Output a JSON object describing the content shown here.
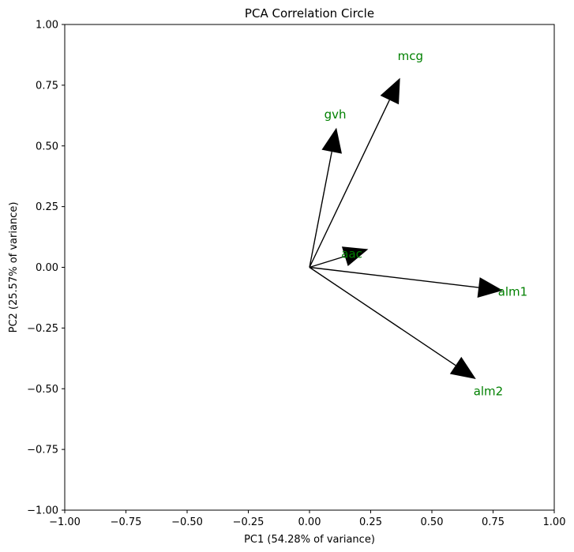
{
  "chart_data": {
    "type": "scatter",
    "title": "PCA Correlation Circle",
    "xlabel": "PC1 (54.28% of variance)",
    "ylabel": "PC2 (25.57% of variance)",
    "xlim": [
      -1.0,
      1.0
    ],
    "ylim": [
      -1.0,
      1.0
    ],
    "xticks": [
      "−1.00",
      "−0.75",
      "−0.50",
      "−0.25",
      "0.00",
      "0.25",
      "0.50",
      "0.75",
      "1.00"
    ],
    "yticks": [
      "1.00",
      "0.75",
      "0.50",
      "0.25",
      "0.00",
      "−0.25",
      "−0.50",
      "−0.75",
      "−1.00"
    ],
    "grid": false,
    "arrow_color": "#000000",
    "label_color": "#008000",
    "vectors": [
      {
        "label": "mcg",
        "x": 0.37,
        "y": 0.78,
        "label_x": 0.36,
        "label_y": 0.87
      },
      {
        "label": "gvh",
        "x": 0.11,
        "y": 0.575,
        "label_x": 0.06,
        "label_y": 0.63
      },
      {
        "label": "aac",
        "x": 0.24,
        "y": 0.075,
        "label_x": 0.13,
        "label_y": 0.055
      },
      {
        "label": "alm1",
        "x": 0.79,
        "y": -0.095,
        "label_x": 0.77,
        "label_y": -0.1
      },
      {
        "label": "alm2",
        "x": 0.68,
        "y": -0.46,
        "label_x": 0.67,
        "label_y": -0.51
      }
    ]
  }
}
